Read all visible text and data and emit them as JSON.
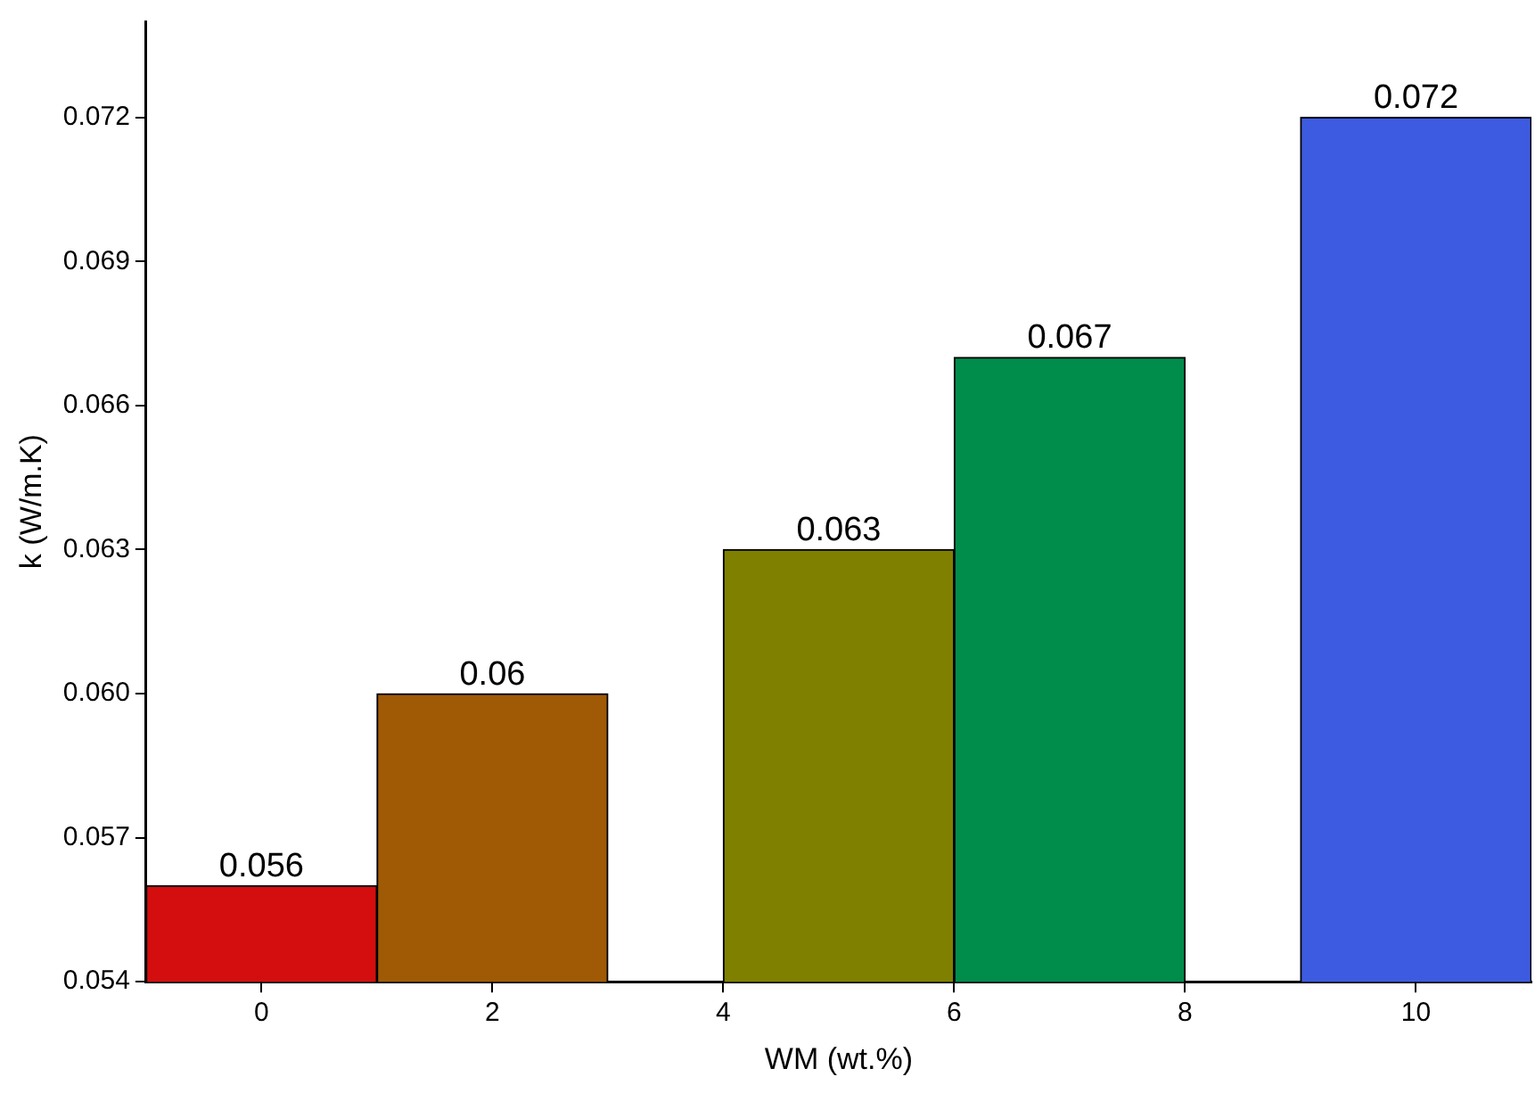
{
  "chart_data": {
    "type": "bar",
    "xlabel": "WM (wt.%)",
    "ylabel": "k (W/m.K)",
    "x": [
      0,
      2,
      5,
      7,
      10
    ],
    "values": [
      0.056,
      0.06,
      0.063,
      0.067,
      0.072
    ],
    "colors": [
      "#d40e0e",
      "#a05a05",
      "#808000",
      "#008c4a",
      "#3d5be0"
    ],
    "xlim": [
      -1,
      11
    ],
    "xticks": [
      0,
      2,
      4,
      6,
      8,
      10
    ],
    "ylim": [
      0.054,
      0.074
    ],
    "yticks": [
      0.054,
      0.057,
      {
        "value": 0.06,
        "label": "0.060"
      },
      0.063,
      0.066,
      0.069,
      0.072
    ],
    "data_labels": true,
    "grid": false,
    "legend": false
  }
}
